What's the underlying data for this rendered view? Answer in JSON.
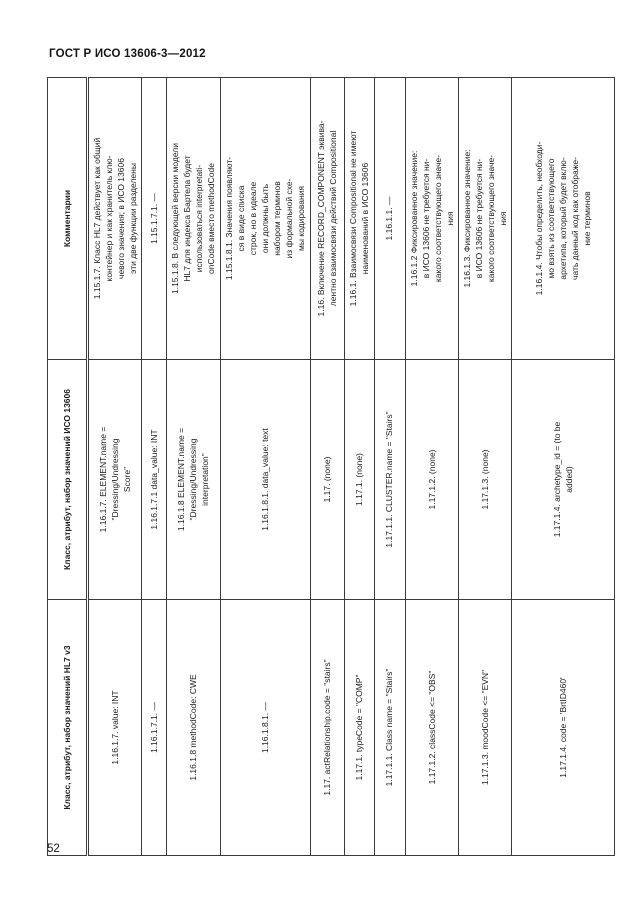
{
  "page": {
    "header_title": "ГОСТ Р ИСО 13606-3—2012",
    "page_number": "52"
  },
  "table": {
    "columns": [
      "Класс, атрибут, набор значений HL7 v3",
      "Класс, атрибут, набор значений ИСО 13606",
      "Комментарии"
    ],
    "rows": [
      {
        "hl7": "1.16.1.7. value: INT",
        "iso": "1.16.1.7. ELEMENT.name =\n\"Dressing/Undressing\nScore\"",
        "comment": "1.15.1.7. Класс HL7 действует как общий\nконтейнер и как хранитель клю-\nчевого значения; в ИСО 13606\nэти две функции разделены"
      },
      {
        "hl7": "1.16.1.7.1. —",
        "iso": "1.16.1.7.1 data_value: INT",
        "comment": "1.15.1.7.1. —"
      },
      {
        "hl7": "1.16.1.8 methodCode: CWE",
        "iso": "1.16.1.8 ELEMENT.name =\n\"Dressing/Undressing\ninterpretation\"",
        "comment": "1.15.1.8. В следующей версии модели\nHL7 для индекса Бартела будет\nиспользоваться interpretati-\nonCode вместо methodCode"
      },
      {
        "hl7": "1.16.1.8.1. —",
        "iso": "1.16.1.8.1. data_value: text",
        "comment": "1.15.1.8.1. Значения появляют-\nся в виде списка\nстрок, но в идеале\nони должны быть\nнабором терминов\nиз формальной схе-\nмы кодирования"
      },
      {
        "hl7": "1.17. actRelationship.code = \"stairs\"",
        "iso": "1.17. (none)",
        "comment": "1.16. Включение RECORD_COMPONENT эквива-\nлентно взаимосвязи действий Compositional"
      },
      {
        "hl7": "1.17.1. typeCode = \"COMP\"",
        "iso": "1.17.1. (none)",
        "comment": "1.16.1. Взаимосвязи Compositional не имеют\nнаименований в ИСО 13606"
      },
      {
        "hl7": "1.17.1.1. Class name = \"Stairs\"",
        "iso": "1.17.1.1. CLUSTER.name = \"Stairs\"",
        "comment": "1.16.1.1. —"
      },
      {
        "hl7": "1.17.1.2. classCode <= \"OBS\"",
        "iso": "1.17.1.2. (none)",
        "comment": "1.16.1.2 Фиксированное значение:\nв ИСО 13606 не требуется ни-\nкакого соответствующего значе-\nния"
      },
      {
        "hl7": "1.17.1.3. moodCode <= \"EVN\"",
        "iso": "1.17.1.3. (none)",
        "comment": "1.16.1.3. Фиксированное значение:\nв ИСО 13606 не требуется ни-\nкакого соответствующего значе-\nния"
      },
      {
        "hl7": "1.17.1.4. code = 'BrtID460'",
        "iso": "1.17.1.4. archetype_id = (to be\nadded)",
        "comment": "1.16.1.4. Чтобы определить, необходи-\nмо взять из соответствующего\nархетипа, который будет вклю-\nчать данный код как отображе-\nние терминов"
      }
    ]
  }
}
